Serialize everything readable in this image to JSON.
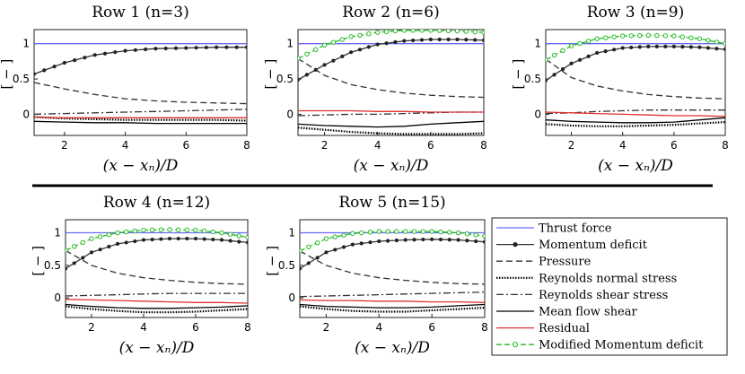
{
  "chart_data": {
    "type": "line",
    "xlabel": "(x − xₙ)/D",
    "ylabel": "[ − ]",
    "xlim": [
      1,
      8
    ],
    "ylim": [
      -0.3,
      1.2
    ],
    "xticks": [
      2,
      4,
      6,
      8
    ],
    "yticks": [
      0,
      0.5,
      1
    ],
    "x": [
      1,
      2,
      3,
      4,
      5,
      6,
      7,
      8
    ],
    "legend": [
      {
        "key": "thrust",
        "name": "Thrust force",
        "color": "#6b6bff",
        "dash": "",
        "marker": "none"
      },
      {
        "key": "momentum",
        "name": "Momentum deficit",
        "color": "#333333",
        "dash": "",
        "marker": "dot"
      },
      {
        "key": "pressure",
        "name": "Pressure",
        "color": "#333333",
        "dash": "7,4",
        "marker": "none"
      },
      {
        "key": "rns",
        "name": "Reynolds normal stress",
        "color": "#000000",
        "dash": "1.5,1.5",
        "marker": "none"
      },
      {
        "key": "rss",
        "name": "Reynolds shear stress",
        "color": "#333333",
        "dash": "8,3,2,3",
        "marker": "none"
      },
      {
        "key": "mfs",
        "name": "Mean flow shear",
        "color": "#000000",
        "dash": "",
        "marker": "none"
      },
      {
        "key": "residual",
        "name": "Residual",
        "color": "#e03030",
        "dash": "",
        "marker": "none"
      },
      {
        "key": "modified",
        "name": "Modified Momentum deficit",
        "color": "#22bb22",
        "dash": "6,3",
        "marker": "circle"
      }
    ],
    "panels": [
      {
        "title": "Row 1 (n=3)",
        "series": {
          "thrust": [
            1,
            1,
            1,
            1,
            1,
            1,
            1,
            1
          ],
          "momentum": [
            0.57,
            0.73,
            0.84,
            0.9,
            0.93,
            0.94,
            0.95,
            0.95
          ],
          "pressure": [
            0.45,
            0.36,
            0.28,
            0.22,
            0.19,
            0.17,
            0.16,
            0.15
          ],
          "rss": [
            0.0,
            0.01,
            0.02,
            0.03,
            0.04,
            0.05,
            0.06,
            0.07
          ],
          "rns": [
            -0.04,
            -0.06,
            -0.07,
            -0.08,
            -0.08,
            -0.08,
            -0.08,
            -0.09
          ],
          "mfs": [
            -0.1,
            -0.11,
            -0.12,
            -0.12,
            -0.13,
            -0.13,
            -0.13,
            -0.13
          ],
          "residual": [
            -0.04,
            -0.05,
            -0.05,
            -0.05,
            -0.05,
            -0.05,
            -0.05,
            -0.05
          ]
        }
      },
      {
        "title": "Row 2 (n=6)",
        "series": {
          "thrust": [
            1,
            1,
            1,
            1,
            1,
            1,
            1,
            1
          ],
          "momentum": [
            0.49,
            0.7,
            0.88,
            0.99,
            1.04,
            1.06,
            1.06,
            1.05
          ],
          "modified": [
            0.79,
            0.98,
            1.1,
            1.16,
            1.19,
            1.19,
            1.18,
            1.16
          ],
          "pressure": [
            0.79,
            0.55,
            0.42,
            0.35,
            0.3,
            0.27,
            0.25,
            0.24
          ],
          "rss": [
            -0.02,
            -0.01,
            0.0,
            0.0,
            0.01,
            0.02,
            0.03,
            0.03
          ],
          "rns": [
            -0.19,
            -0.22,
            -0.25,
            -0.27,
            -0.28,
            -0.28,
            -0.28,
            -0.27
          ],
          "mfs": [
            -0.14,
            -0.16,
            -0.17,
            -0.18,
            -0.17,
            -0.14,
            -0.12,
            -0.1
          ],
          "residual": [
            0.05,
            0.05,
            0.05,
            0.04,
            0.04,
            0.03,
            0.03,
            0.03
          ]
        }
      },
      {
        "title": "Row 3 (n=9)",
        "series": {
          "thrust": [
            1,
            1,
            1,
            1,
            1,
            1,
            1,
            1
          ],
          "momentum": [
            0.48,
            0.72,
            0.87,
            0.94,
            0.96,
            0.96,
            0.95,
            0.92
          ],
          "modified": [
            0.77,
            0.97,
            1.07,
            1.11,
            1.12,
            1.11,
            1.07,
            1.0
          ],
          "pressure": [
            0.78,
            0.52,
            0.4,
            0.33,
            0.28,
            0.25,
            0.23,
            0.22
          ],
          "rss": [
            0.01,
            0.02,
            0.04,
            0.05,
            0.06,
            0.06,
            0.06,
            0.06
          ],
          "rns": [
            -0.14,
            -0.16,
            -0.17,
            -0.17,
            -0.16,
            -0.15,
            -0.13,
            -0.11
          ],
          "mfs": [
            -0.08,
            -0.1,
            -0.11,
            -0.12,
            -0.12,
            -0.11,
            -0.08,
            -0.05
          ],
          "residual": [
            0.03,
            0.02,
            0.01,
            0.0,
            -0.01,
            -0.02,
            -0.02,
            -0.03
          ]
        }
      },
      {
        "title": "Row 4 (n=12)",
        "series": {
          "thrust": [
            1,
            1,
            1,
            1,
            1,
            1,
            1,
            1
          ],
          "momentum": [
            0.45,
            0.7,
            0.83,
            0.89,
            0.91,
            0.91,
            0.89,
            0.85
          ],
          "modified": [
            0.73,
            0.91,
            1.0,
            1.04,
            1.05,
            1.04,
            1.0,
            0.93
          ],
          "pressure": [
            0.73,
            0.5,
            0.38,
            0.31,
            0.27,
            0.24,
            0.22,
            0.21
          ],
          "rss": [
            0.03,
            0.04,
            0.05,
            0.06,
            0.07,
            0.07,
            0.07,
            0.07
          ],
          "rns": [
            -0.13,
            -0.17,
            -0.2,
            -0.22,
            -0.22,
            -0.21,
            -0.19,
            -0.17
          ],
          "mfs": [
            -0.1,
            -0.13,
            -0.15,
            -0.16,
            -0.16,
            -0.15,
            -0.14,
            -0.12
          ],
          "residual": [
            -0.02,
            -0.03,
            -0.04,
            -0.05,
            -0.06,
            -0.07,
            -0.07,
            -0.08
          ]
        }
      },
      {
        "title": "Row 5 (n=15)",
        "series": {
          "thrust": [
            1,
            1,
            1,
            1,
            1,
            1,
            1,
            1
          ],
          "momentum": [
            0.45,
            0.7,
            0.82,
            0.87,
            0.89,
            0.9,
            0.89,
            0.86
          ],
          "modified": [
            0.72,
            0.91,
            0.99,
            1.02,
            1.02,
            1.02,
            1.0,
            0.95
          ],
          "pressure": [
            0.72,
            0.5,
            0.38,
            0.31,
            0.27,
            0.24,
            0.22,
            0.21
          ],
          "rss": [
            0.02,
            0.03,
            0.04,
            0.05,
            0.06,
            0.07,
            0.08,
            0.09
          ],
          "rns": [
            -0.13,
            -0.17,
            -0.2,
            -0.21,
            -0.21,
            -0.19,
            -0.17,
            -0.15
          ],
          "mfs": [
            -0.1,
            -0.13,
            -0.14,
            -0.15,
            -0.15,
            -0.14,
            -0.12,
            -0.1
          ],
          "residual": [
            -0.03,
            -0.04,
            -0.04,
            -0.05,
            -0.05,
            -0.06,
            -0.06,
            -0.07
          ]
        }
      }
    ]
  }
}
